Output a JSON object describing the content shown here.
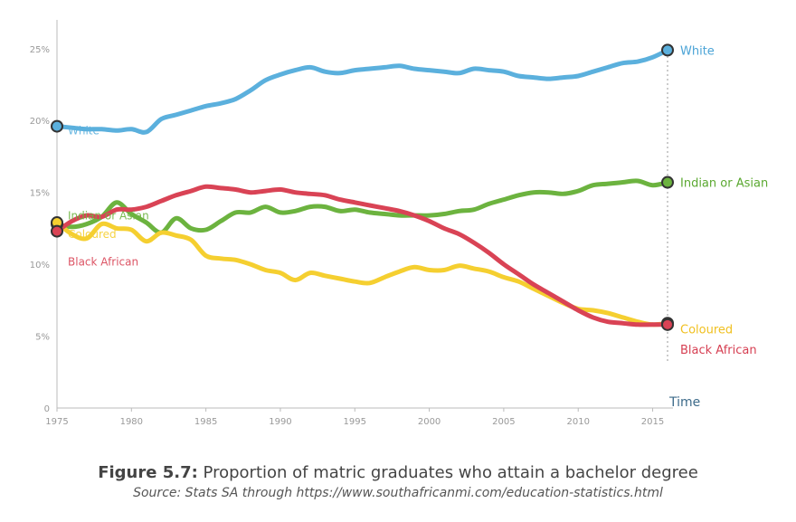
{
  "chart_data": {
    "type": "line",
    "xlabel": "Time",
    "ylabel": "",
    "xlim": [
      1975,
      2016
    ],
    "ylim": [
      0,
      27
    ],
    "x_ticks": [
      "1975",
      "1980",
      "1985",
      "1990",
      "1995",
      "2000",
      "2005",
      "2010",
      "2015"
    ],
    "y_ticks": [
      "0",
      "5%",
      "10%",
      "15%",
      "20%",
      "25%"
    ],
    "grid": false,
    "series": [
      {
        "name": "White",
        "color": "#5bb0dd",
        "start_label": "White",
        "x": [
          1975,
          1976,
          1977,
          1978,
          1979,
          1980,
          1981,
          1982,
          1983,
          1984,
          1985,
          1986,
          1987,
          1988,
          1989,
          1990,
          1991,
          1992,
          1993,
          1994,
          1995,
          1996,
          1997,
          1998,
          1999,
          2000,
          2001,
          2002,
          2003,
          2004,
          2005,
          2006,
          2007,
          2008,
          2009,
          2010,
          2011,
          2012,
          2013,
          2014,
          2015,
          2016
        ],
        "values": [
          19.6,
          19.5,
          19.4,
          19.4,
          19.3,
          19.4,
          19.2,
          20.1,
          20.4,
          20.7,
          21.0,
          21.2,
          21.5,
          22.1,
          22.8,
          23.2,
          23.5,
          23.7,
          23.4,
          23.3,
          23.5,
          23.6,
          23.7,
          23.8,
          23.6,
          23.5,
          23.4,
          23.3,
          23.6,
          23.5,
          23.4,
          23.1,
          23.0,
          22.9,
          23.0,
          23.1,
          23.4,
          23.7,
          24.0,
          24.1,
          24.4,
          24.9
        ]
      },
      {
        "name": "Indian or Asian",
        "color": "#6cb33f",
        "start_label": "Indian or Asian",
        "x": [
          1975,
          1976,
          1977,
          1978,
          1979,
          1980,
          1981,
          1982,
          1983,
          1984,
          1985,
          1986,
          1987,
          1988,
          1989,
          1990,
          1991,
          1992,
          1993,
          1994,
          1995,
          1996,
          1997,
          1998,
          1999,
          2000,
          2001,
          2002,
          2003,
          2004,
          2005,
          2006,
          2007,
          2008,
          2009,
          2010,
          2011,
          2012,
          2013,
          2014,
          2015,
          2016
        ],
        "values": [
          12.8,
          12.6,
          12.8,
          13.3,
          14.3,
          13.5,
          12.9,
          12.2,
          13.2,
          12.5,
          12.4,
          13.0,
          13.6,
          13.6,
          14.0,
          13.6,
          13.7,
          14.0,
          14.0,
          13.7,
          13.8,
          13.6,
          13.5,
          13.4,
          13.4,
          13.4,
          13.5,
          13.7,
          13.8,
          14.2,
          14.5,
          14.8,
          15.0,
          15.0,
          14.9,
          15.1,
          15.5,
          15.6,
          15.7,
          15.8,
          15.5,
          15.7
        ]
      },
      {
        "name": "Coloured",
        "color": "#f5cf30",
        "start_label": "Coloured",
        "x": [
          1975,
          1976,
          1977,
          1978,
          1979,
          1980,
          1981,
          1982,
          1983,
          1984,
          1985,
          1986,
          1987,
          1988,
          1989,
          1990,
          1991,
          1992,
          1993,
          1994,
          1995,
          1996,
          1997,
          1998,
          1999,
          2000,
          2001,
          2002,
          2003,
          2004,
          2005,
          2006,
          2007,
          2008,
          2009,
          2010,
          2011,
          2012,
          2013,
          2014,
          2015,
          2016
        ],
        "values": [
          12.9,
          12.1,
          11.8,
          12.8,
          12.5,
          12.4,
          11.6,
          12.2,
          12.0,
          11.7,
          10.6,
          10.4,
          10.3,
          10.0,
          9.6,
          9.4,
          8.9,
          9.4,
          9.2,
          9.0,
          8.8,
          8.7,
          9.1,
          9.5,
          9.8,
          9.6,
          9.6,
          9.9,
          9.7,
          9.5,
          9.1,
          8.8,
          8.3,
          7.8,
          7.3,
          6.9,
          6.8,
          6.6,
          6.3,
          6.0,
          5.8,
          5.9
        ]
      },
      {
        "name": "Black African",
        "color": "#d94355",
        "start_label": "Black African",
        "x": [
          1975,
          1976,
          1977,
          1978,
          1979,
          1980,
          1981,
          1982,
          1983,
          1984,
          1985,
          1986,
          1987,
          1988,
          1989,
          1990,
          1991,
          1992,
          1993,
          1994,
          1995,
          1996,
          1997,
          1998,
          1999,
          2000,
          2001,
          2002,
          2003,
          2004,
          2005,
          2006,
          2007,
          2008,
          2009,
          2010,
          2011,
          2012,
          2013,
          2014,
          2015,
          2016
        ],
        "values": [
          12.3,
          13.0,
          13.4,
          13.3,
          13.8,
          13.8,
          14.0,
          14.4,
          14.8,
          15.1,
          15.4,
          15.3,
          15.2,
          15.0,
          15.1,
          15.2,
          15.0,
          14.9,
          14.8,
          14.5,
          14.3,
          14.1,
          13.9,
          13.7,
          13.4,
          13.0,
          12.5,
          12.1,
          11.5,
          10.8,
          10.0,
          9.3,
          8.6,
          8.0,
          7.4,
          6.8,
          6.3,
          6.0,
          5.9,
          5.8,
          5.8,
          5.8
        ]
      }
    ]
  },
  "end_labels": [
    {
      "text": "White",
      "color": "#4aa3d6",
      "y_value": 24.9
    },
    {
      "text": "Indian or Asian",
      "color": "#5aa830",
      "y_value": 15.7
    },
    {
      "text": "Coloured",
      "color": "#f0c020",
      "y_value": 5.5
    },
    {
      "text": "Black African",
      "color": "#d63f52",
      "y_value": 4.1
    }
  ],
  "caption": {
    "figure_label": "Figure 5.7:",
    "title": "Proportion of matric graduates who attain a bachelor degree",
    "source": "Source: Stats SA through https://www.southafricanmi.com/education-statistics.html"
  }
}
